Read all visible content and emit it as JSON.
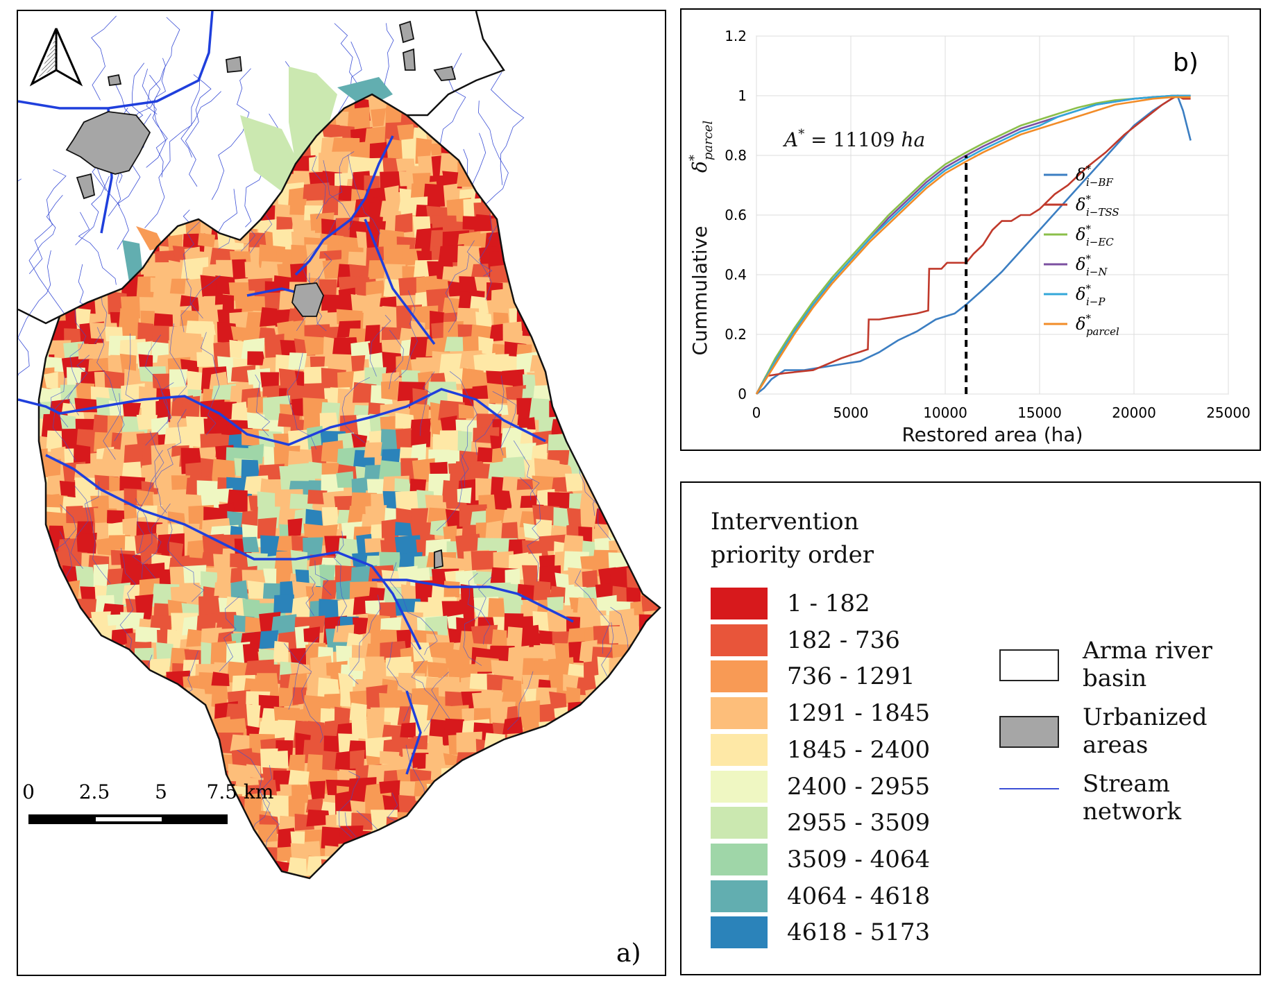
{
  "map": {
    "panel_label": "a)",
    "north_arrow": "north-arrow-icon",
    "scale_bar": {
      "ticks": [
        "0",
        "2.5",
        "5",
        "7.5 km"
      ]
    }
  },
  "chart": {
    "panel_label": "b)",
    "annotation": {
      "prefix": "A",
      "star": "*",
      "value": " = 11109 ",
      "unit": "ha"
    },
    "legend": [
      {
        "sym": "δ",
        "sup": "*",
        "sub": "i−BF",
        "color": "#3b7ec2"
      },
      {
        "sym": "δ",
        "sup": "*",
        "sub": "i−TSS",
        "color": "#c0392b"
      },
      {
        "sym": "δ",
        "sup": "*",
        "sub": "i−EC",
        "color": "#8bbf4a"
      },
      {
        "sym": "δ",
        "sup": "*",
        "sub": "i−N",
        "color": "#7b4fa0"
      },
      {
        "sym": "δ",
        "sup": "*",
        "sub": "i−P",
        "color": "#33a7d9"
      },
      {
        "sym": "δ",
        "sup": "*",
        "sub": "parcel",
        "color": "#f28c28"
      }
    ]
  },
  "chart_data": {
    "type": "line",
    "title": "",
    "xlabel": "Restored area (ha)",
    "ylabel": "Cummulative",
    "ylabel_symbol": {
      "sym": "δ",
      "sup": "*",
      "sub": "parcel"
    },
    "xlim": [
      0,
      25000
    ],
    "ylim": [
      0,
      1.2
    ],
    "xticks": [
      "0",
      "5000",
      "10000",
      "15000",
      "20000",
      "25000"
    ],
    "yticks": [
      "0",
      "0.2",
      "0.4",
      "0.6",
      "0.8",
      "1",
      "1.2"
    ],
    "threshold_x": 11109,
    "series": [
      {
        "name": "δ*i-BF",
        "color": "#3b7ec2",
        "x": [
          0,
          400,
          800,
          1500,
          2500,
          3500,
          4500,
          5500,
          6500,
          7500,
          8500,
          9500,
          10500,
          11109,
          12000,
          13000,
          14000,
          15000,
          16000,
          17000,
          18000,
          19000,
          20000,
          21000,
          22000,
          22300,
          22600,
          23000
        ],
        "y": [
          0,
          0.02,
          0.05,
          0.08,
          0.08,
          0.09,
          0.1,
          0.11,
          0.14,
          0.18,
          0.21,
          0.25,
          0.27,
          0.3,
          0.35,
          0.41,
          0.48,
          0.55,
          0.62,
          0.69,
          0.76,
          0.83,
          0.9,
          0.95,
          0.99,
          1.0,
          0.95,
          0.85
        ]
      },
      {
        "name": "δ*i-TSS",
        "color": "#c0392b",
        "x": [
          0,
          500,
          1500,
          3000,
          4500,
          5900,
          5950,
          6500,
          7500,
          8500,
          9100,
          9150,
          9800,
          10100,
          10500,
          11109,
          11500,
          12000,
          12500,
          13000,
          13500,
          14000,
          14500,
          15000,
          15800,
          16500,
          17500,
          18500,
          19500,
          20500,
          21500,
          22000,
          22300,
          22600,
          23000
        ],
        "y": [
          0,
          0.06,
          0.07,
          0.08,
          0.12,
          0.15,
          0.25,
          0.25,
          0.26,
          0.27,
          0.28,
          0.42,
          0.42,
          0.44,
          0.44,
          0.44,
          0.47,
          0.5,
          0.55,
          0.58,
          0.58,
          0.6,
          0.6,
          0.62,
          0.67,
          0.7,
          0.76,
          0.81,
          0.87,
          0.92,
          0.97,
          0.99,
          1.0,
          0.99,
          0.99
        ]
      },
      {
        "name": "δ*i-EC",
        "color": "#8bbf4a",
        "x": [
          0,
          1000,
          2000,
          3000,
          4000,
          5000,
          6000,
          7000,
          8000,
          9000,
          10000,
          11109,
          12000,
          13000,
          14000,
          15000,
          16000,
          17000,
          18000,
          19000,
          20000,
          21000,
          22000,
          23000
        ],
        "y": [
          0,
          0.12,
          0.22,
          0.31,
          0.39,
          0.46,
          0.53,
          0.6,
          0.66,
          0.72,
          0.77,
          0.81,
          0.84,
          0.87,
          0.9,
          0.92,
          0.94,
          0.96,
          0.975,
          0.985,
          0.99,
          0.995,
          1.0,
          1.0
        ]
      },
      {
        "name": "δ*i-N",
        "color": "#7b4fa0",
        "x": [
          0,
          1000,
          2000,
          3000,
          4000,
          5000,
          6000,
          7000,
          8000,
          9000,
          10000,
          11109,
          12000,
          13000,
          14000,
          15000,
          16000,
          17000,
          18000,
          19000,
          20000,
          21000,
          22000,
          23000
        ],
        "y": [
          0,
          0.11,
          0.21,
          0.3,
          0.38,
          0.45,
          0.52,
          0.59,
          0.65,
          0.71,
          0.76,
          0.8,
          0.83,
          0.86,
          0.89,
          0.91,
          0.93,
          0.95,
          0.97,
          0.98,
          0.99,
          0.995,
          1.0,
          1.0
        ]
      },
      {
        "name": "δ*i-P",
        "color": "#33a7d9",
        "x": [
          0,
          1000,
          2000,
          3000,
          4000,
          5000,
          6000,
          7000,
          8000,
          9000,
          10000,
          11109,
          12000,
          13000,
          14000,
          15000,
          16000,
          17000,
          18000,
          19000,
          20000,
          21000,
          22000,
          23000
        ],
        "y": [
          0,
          0.11,
          0.21,
          0.3,
          0.38,
          0.45,
          0.52,
          0.58,
          0.64,
          0.7,
          0.75,
          0.79,
          0.82,
          0.85,
          0.88,
          0.9,
          0.93,
          0.95,
          0.97,
          0.98,
          0.99,
          0.995,
          1.0,
          1.0
        ]
      },
      {
        "name": "δ*parcel",
        "color": "#f28c28",
        "x": [
          0,
          1000,
          2000,
          3000,
          4000,
          5000,
          6000,
          7000,
          8000,
          9000,
          10000,
          11109,
          12000,
          13000,
          14000,
          15000,
          16000,
          17000,
          18000,
          19000,
          20000,
          21000,
          22000,
          23000
        ],
        "y": [
          0,
          0.1,
          0.2,
          0.29,
          0.37,
          0.44,
          0.51,
          0.57,
          0.63,
          0.69,
          0.74,
          0.78,
          0.81,
          0.84,
          0.87,
          0.89,
          0.91,
          0.93,
          0.95,
          0.97,
          0.98,
          0.99,
          0.995,
          0.995
        ]
      }
    ]
  },
  "legend": {
    "title_line1": "Intervention",
    "title_line2": "priority order",
    "classes": [
      {
        "label": "1 - 182",
        "color": "#d7191c"
      },
      {
        "label": "182 - 736",
        "color": "#e8553a"
      },
      {
        "label": "736 - 1291",
        "color": "#f89a55"
      },
      {
        "label": "1291 - 1845",
        "color": "#fdbe7a"
      },
      {
        "label": "1845 - 2400",
        "color": "#fee8a6"
      },
      {
        "label": "2400 - 2955",
        "color": "#eff7c2"
      },
      {
        "label": "2955 - 3509",
        "color": "#cbe8b0"
      },
      {
        "label": "3509 - 4064",
        "color": "#9fd6a8"
      },
      {
        "label": "4064 - 4618",
        "color": "#62aeb0"
      },
      {
        "label": "4618 - 5173",
        "color": "#2b83ba"
      }
    ],
    "other": {
      "basin_line1": "Arma river",
      "basin_line2": "basin",
      "urban_line1": "Urbanized",
      "urban_line2": "areas",
      "stream_line1": "Stream",
      "stream_line2": "network",
      "basin_color": "#ffffff",
      "urban_color": "#a6a6a6",
      "stream_color": "#3b4fd6"
    }
  }
}
